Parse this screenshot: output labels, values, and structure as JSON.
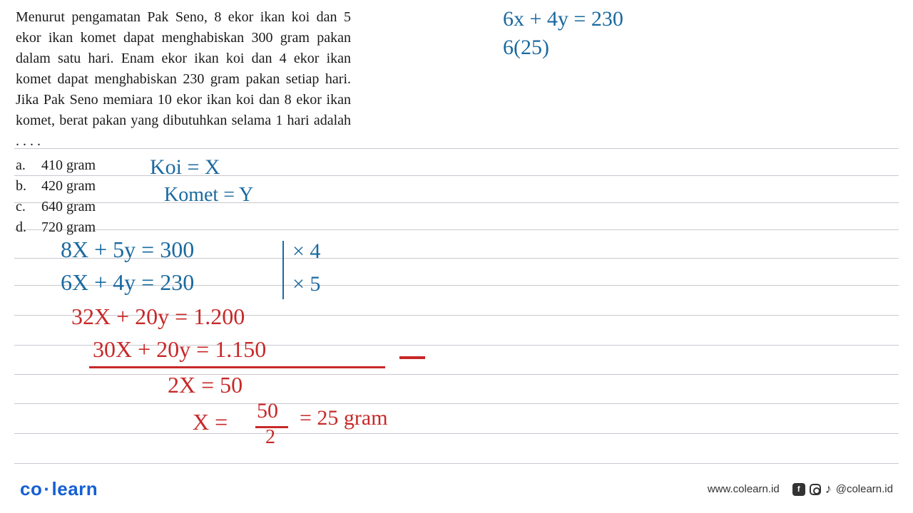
{
  "question_text": "Menurut pengamatan Pak Seno, 8 ekor ikan koi dan 5 ekor ikan komet dapat menghabiskan 300 gram pakan dalam satu hari. Enam ekor ikan koi dan 4 ekor ikan komet dapat menghabiskan 230 gram pakan setiap hari. Jika Pak Seno memiara 10 ekor ikan koi dan 8 ekor ikan komet, berat pakan yang dibutuhkan selama 1 hari adalah . . . .",
  "options": [
    {
      "letter": "a.",
      "text": "410 gram"
    },
    {
      "letter": "b.",
      "text": "420 gram"
    },
    {
      "letter": "c.",
      "text": "640 gram"
    },
    {
      "letter": "d.",
      "text": "720 gram"
    }
  ],
  "handwriting": {
    "koi_label": "Koi = X",
    "komet_label": "Komet = Y",
    "eq_top1": "6x + 4y = 230",
    "eq_top2": "6(25)",
    "eq1": "8X + 5y = 300",
    "eq1_mult": "× 4",
    "eq2": "6X + 4y = 230",
    "eq2_mult": "× 5",
    "eq3": "32X + 20y  =  1.200",
    "eq4": "30X + 20y = 1.150",
    "eq5": "2X   =  50",
    "eq6a": "X  =",
    "eq6b": "50",
    "eq6c": "2",
    "eq6d": "= 25 gram"
  },
  "colors": {
    "text": "#1a1a1a",
    "blue_ink": "#1a6aa0",
    "red_ink": "#c82828",
    "rule_line": "#c8c8d0",
    "logo": "#1560d4"
  },
  "ruled_line_positions": [
    208,
    246,
    284,
    322,
    362,
    400,
    442,
    484,
    525,
    566,
    608,
    650
  ],
  "footer": {
    "logo_co": "co",
    "logo_learn": "learn",
    "url": "www.colearn.id",
    "handle": "@colearn.id"
  }
}
